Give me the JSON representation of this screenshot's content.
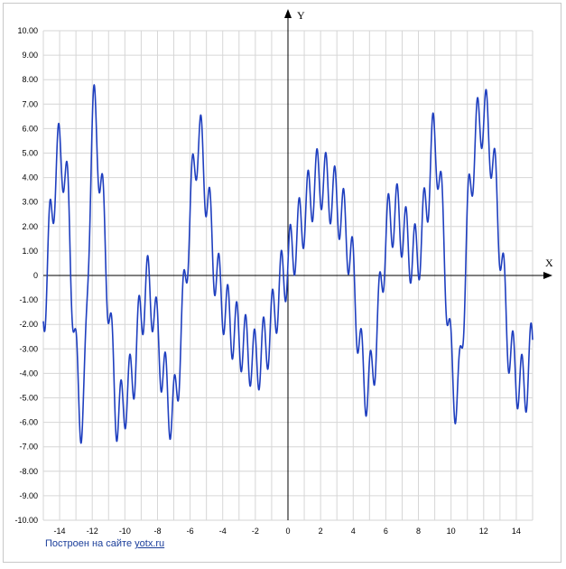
{
  "chart_data": {
    "type": "line",
    "title": "",
    "xlabel": "X",
    "ylabel": "Y",
    "xlim": [
      -15,
      15
    ],
    "ylim": [
      -10,
      10
    ],
    "grid": true,
    "x_ticks": [
      "-14",
      "-12",
      "-10",
      "-8",
      "-6",
      "-4",
      "-2",
      "0",
      "2",
      "4",
      "6",
      "8",
      "10",
      "12",
      "14"
    ],
    "y_ticks": [
      "10.00",
      "9.00",
      "8.00",
      "7.00",
      "6.00",
      "5.00",
      "4.00",
      "3.00",
      "2.00",
      "1.00",
      "0",
      "-1.00",
      "-2.00",
      "-3.00",
      "-4.00",
      "-5.00",
      "-6.00",
      "-7.00",
      "-8.00",
      "-9.00",
      "-10.00"
    ],
    "series": [
      {
        "color": "#1f3fbf",
        "x": [
          -15,
          -14.5,
          -14,
          -13.5,
          -13,
          -12.5,
          -12,
          -11.5,
          -11,
          -10.5,
          -10,
          -9.5,
          -9,
          -8.5,
          -8,
          -7.5,
          -7,
          -6.5,
          -6,
          -5.5,
          -5,
          -4.5,
          -4,
          -3.5,
          -3,
          -2.5,
          -2,
          -1.5,
          -1,
          -0.5,
          0,
          0.5,
          1,
          1.5,
          2,
          2.5,
          3,
          3.5,
          4,
          4.5,
          5,
          5.5,
          6,
          6.5,
          7,
          7.5,
          8,
          8.5,
          9,
          9.5,
          10,
          10.5,
          11,
          11.5,
          12,
          12.5,
          13,
          13.5,
          14,
          14.5,
          15
        ],
        "y": [
          -1.5,
          2.5,
          5.0,
          3.0,
          -3.5,
          -5.0,
          6.0,
          4.0,
          -1.0,
          -5.5,
          -5.0,
          -4.0,
          -1.5,
          -0.5,
          -2.5,
          -4.5,
          -5.5,
          -2.0,
          2.5,
          5.5,
          3.5,
          0.5,
          -1.0,
          -2.0,
          -2.5,
          -3.0,
          -3.5,
          -3.0,
          -2.0,
          -0.5,
          0.5,
          1.5,
          2.5,
          3.5,
          4.0,
          3.5,
          3.0,
          2.0,
          0.0,
          -3.5,
          -4.5,
          -2.0,
          1.5,
          2.5,
          2.0,
          1.0,
          1.0,
          3.0,
          5.5,
          2.0,
          -3.5,
          -4.5,
          2.0,
          5.5,
          6.5,
          5.0,
          1.5,
          -2.5,
          -4.0,
          -4.5,
          -3.0
        ]
      }
    ]
  },
  "credit": {
    "text": "Построен на сайте",
    "link": "yotx.ru"
  }
}
